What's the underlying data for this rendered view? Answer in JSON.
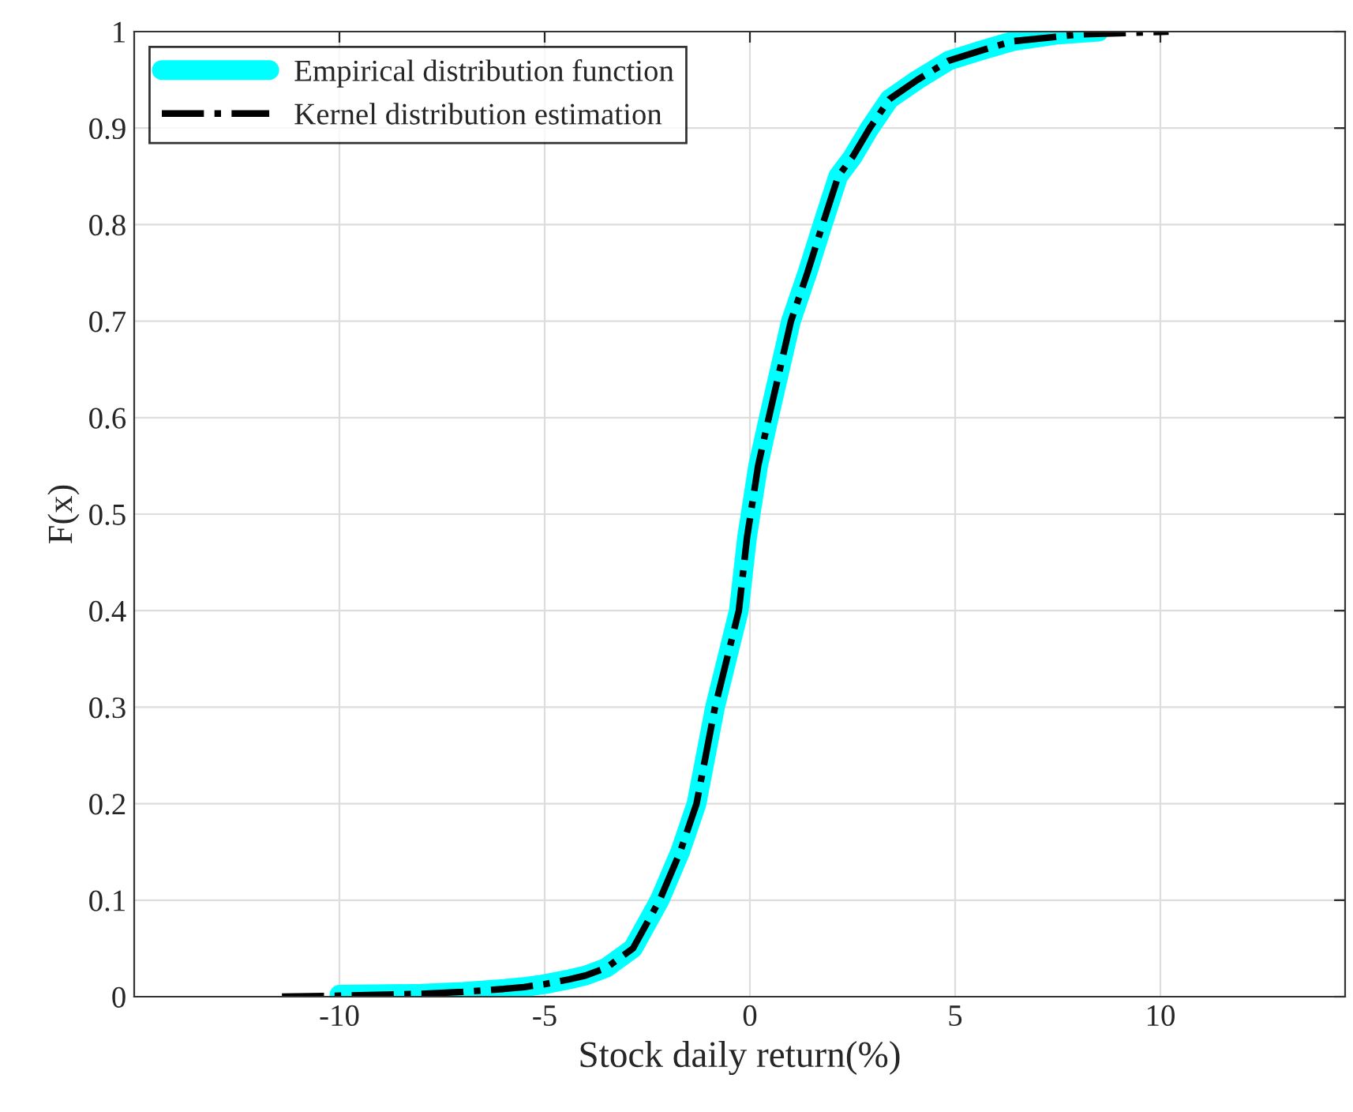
{
  "chart_data": {
    "type": "line",
    "xlabel": "Stock daily return(%)",
    "ylabel": "F(x)",
    "xlim": [
      -15,
      14.5
    ],
    "ylim": [
      0,
      1
    ],
    "xticks": [
      -10,
      -5,
      0,
      5,
      10
    ],
    "yticks": [
      0,
      0.1,
      0.2,
      0.3,
      0.4,
      0.5,
      0.6,
      0.7,
      0.8,
      0.9,
      1
    ],
    "grid": true,
    "legend": "top left",
    "series": [
      {
        "name": "Empirical distribution function",
        "color": "#00ffff",
        "line_style": "solid",
        "x": [
          -10,
          -8,
          -7,
          -6,
          -5.5,
          -5,
          -4.4,
          -4,
          -3.5,
          -2.85,
          -2.2,
          -1.7,
          -1.3,
          -0.85,
          -0.27,
          -0.07,
          0.2,
          0.46,
          1.0,
          1.4,
          1.77,
          2.15,
          2.5,
          2.92,
          3.4,
          4.08,
          4.85,
          5.6,
          6.4,
          7.5,
          8.5
        ],
        "values": [
          0.002,
          0.003,
          0.005,
          0.008,
          0.01,
          0.013,
          0.018,
          0.022,
          0.03,
          0.05,
          0.1,
          0.15,
          0.2,
          0.3,
          0.4,
          0.476,
          0.55,
          0.6,
          0.7,
          0.75,
          0.8,
          0.85,
          0.87,
          0.9,
          0.93,
          0.95,
          0.97,
          0.98,
          0.99,
          0.997,
          1
        ]
      },
      {
        "name": "Kernel distribution estimation",
        "color": "#000000",
        "line_style": "dashed",
        "x": [
          -11.4,
          -10,
          -8,
          -7,
          -6,
          -5.5,
          -5,
          -4.4,
          -4,
          -3.5,
          -2.85,
          -2.2,
          -1.7,
          -1.3,
          -0.85,
          -0.27,
          -0.07,
          0.2,
          0.46,
          1.0,
          1.4,
          1.77,
          2.15,
          2.5,
          2.92,
          3.4,
          4.08,
          4.85,
          5.6,
          6.4,
          8,
          10.2
        ],
        "values": [
          0,
          0.001,
          0.003,
          0.005,
          0.008,
          0.01,
          0.013,
          0.018,
          0.022,
          0.03,
          0.05,
          0.1,
          0.15,
          0.2,
          0.3,
          0.4,
          0.476,
          0.55,
          0.6,
          0.7,
          0.75,
          0.8,
          0.85,
          0.87,
          0.9,
          0.93,
          0.95,
          0.97,
          0.98,
          0.99,
          0.997,
          1
        ]
      }
    ]
  }
}
